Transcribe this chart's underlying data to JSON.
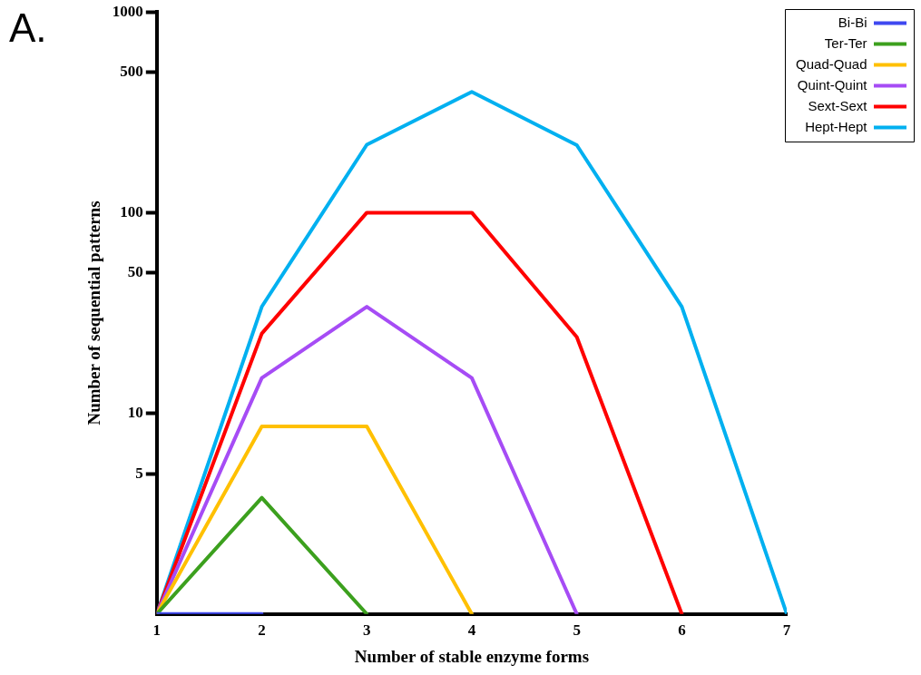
{
  "chart_data": {
    "type": "line",
    "xlabel": "Number of stable enzyme forms",
    "ylabel": "Number of sequential patterns",
    "annotations": [
      "A."
    ],
    "xlim": [
      1,
      7
    ],
    "xticks": [
      1,
      2,
      3,
      4,
      5,
      6,
      7
    ],
    "ylim": [
      1,
      1000
    ],
    "yticks": [
      5,
      10,
      50,
      100,
      500,
      1000
    ],
    "log": "y",
    "grid": false,
    "legend": "top right",
    "marker": "none",
    "line_style": "solid",
    "series": [
      {
        "name": "Bi-Bi",
        "color": "#3f48f0",
        "x": [
          1,
          2
        ],
        "values": [
          1,
          1
        ]
      },
      {
        "name": "Ter-Ter",
        "color": "#3ca01e",
        "x": [
          1,
          2,
          3
        ],
        "values": [
          1,
          3.8,
          1
        ]
      },
      {
        "name": "Quad-Quad",
        "color": "#ffc000",
        "x": [
          1,
          2,
          3,
          4
        ],
        "values": [
          1,
          8.6,
          8.6,
          1
        ]
      },
      {
        "name": "Quint-Quint",
        "color": "#a64cf5",
        "x": [
          1,
          2,
          3,
          4,
          5
        ],
        "values": [
          1,
          15,
          34,
          15,
          1
        ]
      },
      {
        "name": "Sext-Sext",
        "color": "#ff0000",
        "x": [
          1,
          2,
          3,
          4,
          5,
          6
        ],
        "values": [
          1,
          25,
          100,
          100,
          24,
          1
        ]
      },
      {
        "name": "Hept-Hept",
        "color": "#00b0f0",
        "x": [
          1,
          2,
          3,
          4,
          5,
          6,
          7
        ],
        "values": [
          1,
          34,
          218,
          400,
          217,
          34,
          1
        ]
      }
    ]
  }
}
